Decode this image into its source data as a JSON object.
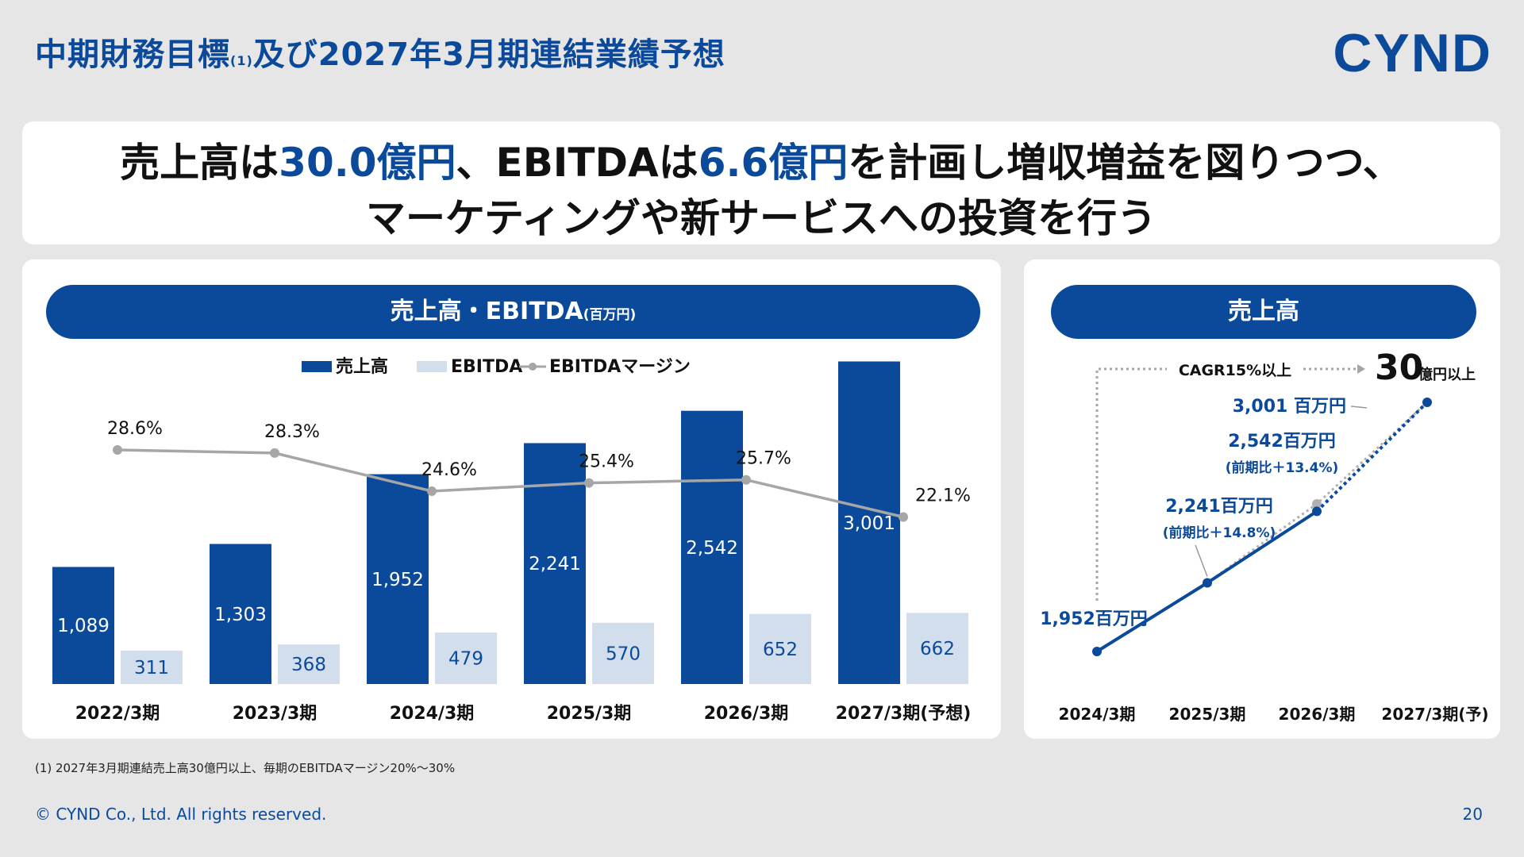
{
  "page": {
    "title_main": "中期財務目標",
    "title_sup": "(1)",
    "title_rest": "及び2027年3月期連結業績予想",
    "logo": "CYND",
    "headline_line1_a": "売上高は",
    "headline_line1_b": "30.0億円",
    "headline_line1_c": "、EBITDAは",
    "headline_line1_d": "6.6億円",
    "headline_line1_e": "を計画し増収増益を図りつつ、",
    "headline_line2": "マーケティングや新サービスへの投資を行う",
    "footnote": "(1) 2027年3月期連結売上高30億円以上、毎期のEBITDAマージン20%～30%",
    "copyright": "© CYND Co., Ltd. All rights reserved.",
    "page_number": "20",
    "colors": {
      "brand": "#0b4a9a",
      "light_bar": "#d3deed",
      "line": "#a6a6a6"
    }
  },
  "left_chart": {
    "pill_main": "売上高・EBITDA",
    "pill_unit": "(百万円)"
  },
  "right_chart": {
    "pill": "売上高",
    "cagr_label": "CAGR15%以上",
    "target_value": "30",
    "target_unit": "億円以上"
  },
  "chart_data": [
    {
      "type": "bar",
      "categories": [
        "2022/3期",
        "2023/3期",
        "2024/3期",
        "2025/3期",
        "2026/3期",
        "2027/3期(予想)"
      ],
      "series": [
        {
          "name": "売上高",
          "values": [
            1089,
            1303,
            1952,
            2241,
            2542,
            3001
          ],
          "labels": [
            "1,089",
            "1,303",
            "1,952",
            "2,241",
            "2,542",
            "3,001"
          ],
          "color": "#0b4a9a"
        },
        {
          "name": "EBITDA",
          "values": [
            311,
            368,
            479,
            570,
            652,
            662
          ],
          "labels": [
            "311",
            "368",
            "479",
            "570",
            "652",
            "662"
          ],
          "color": "#d3deed"
        },
        {
          "name": "EBITDAマージン",
          "type": "line",
          "values": [
            28.6,
            28.3,
            24.6,
            25.4,
            25.7,
            22.1
          ],
          "labels": [
            "28.6%",
            "28.3%",
            "24.6%",
            "25.4%",
            "25.7%",
            "22.1%"
          ],
          "color": "#a6a6a6"
        }
      ],
      "ylim": [
        0,
        3300
      ],
      "legend": "top-center"
    },
    {
      "type": "line",
      "categories": [
        "2024/3期",
        "2025/3期",
        "2026/3期",
        "2027/3期(予)"
      ],
      "values": [
        1952,
        2241,
        2542,
        3001
      ],
      "labels": [
        "1,952百万円",
        "2,241百万円",
        "2,542百万円",
        "3,001 百万円"
      ],
      "sublabels": [
        "",
        "(前期比＋14.8%)",
        "(前期比＋13.4%)",
        ""
      ],
      "ylim": [
        1952,
        3001
      ]
    }
  ]
}
